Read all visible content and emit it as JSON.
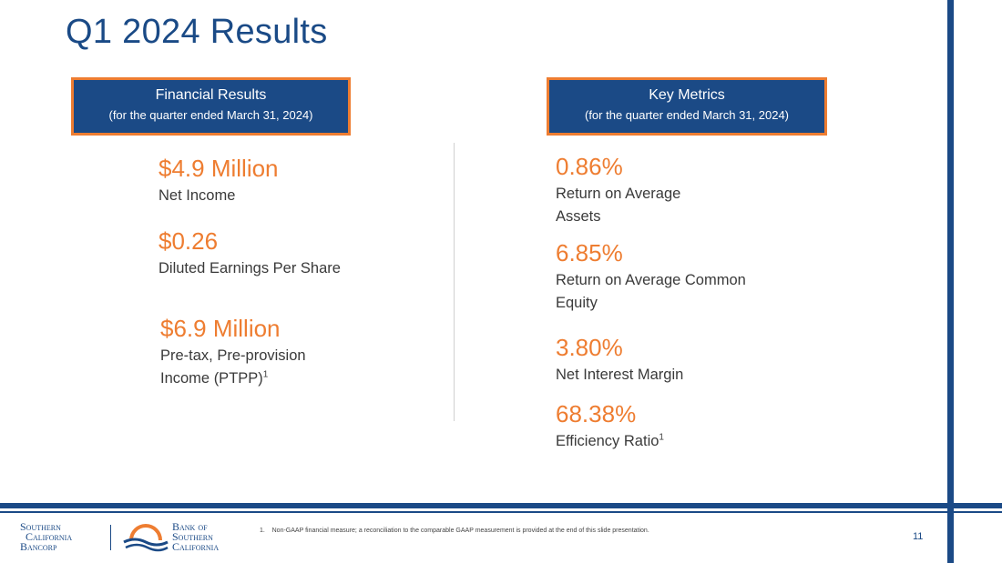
{
  "title": "Q1 2024 Results",
  "financial": {
    "heading": "Financial Results",
    "subheading": "(for the quarter ended March 31, 2024)",
    "metrics": [
      {
        "value": "$4.9 Million",
        "label": "Net Income"
      },
      {
        "value": "$0.26",
        "label": "Diluted Earnings Per Share"
      },
      {
        "value": "$6.9 Million",
        "label": "Pre-tax, Pre-provision Income (PTPP)",
        "footnote_mark": "1"
      }
    ]
  },
  "key_metrics": {
    "heading": "Key Metrics",
    "subheading": "(for the quarter ended March 31, 2024)",
    "metrics": [
      {
        "value": "0.86%",
        "label": "Return on Average Assets"
      },
      {
        "value": "6.85%",
        "label": "Return on Average Common Equity"
      },
      {
        "value": "3.80%",
        "label": "Net Interest Margin"
      },
      {
        "value": "68.38%",
        "label": "Efficiency Ratio",
        "footnote_mark": "1"
      }
    ]
  },
  "footnote": {
    "number": "1.",
    "text": "Non-GAAP financial measure; a reconciliation to the comparable GAAP measurement is provided at the end of this slide presentation."
  },
  "page_number": "11",
  "logos": {
    "southern_california_bancorp": [
      "Southern",
      "California",
      "Bancorp"
    ],
    "bank_of_southern_california": [
      "Bank of",
      "Southern",
      "California"
    ]
  },
  "colors": {
    "brand_blue": "#1b4a86",
    "accent_orange": "#ee7d31"
  }
}
